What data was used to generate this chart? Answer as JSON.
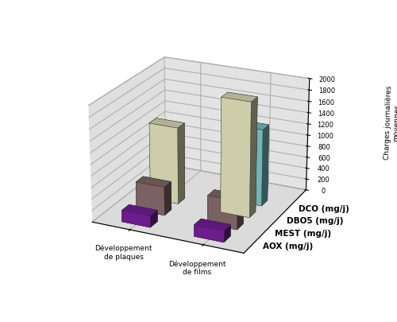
{
  "ylabel": "Charges journalières\nmoyennes\npar salarié (mg/j)",
  "categories": [
    "Développement\nde plaques",
    "Développement\nde films"
  ],
  "series": [
    "AOX (mg/j)",
    "MEST (mg/j)",
    "DBO5 (mg/j)",
    "DCO (mg/j)"
  ],
  "values": [
    [
      200,
      500,
      1350,
      0
    ],
    [
      200,
      500,
      2000,
      1350
    ]
  ],
  "bar_colors": [
    "#7b1fa2",
    "#8b6e6e",
    "#e8e8c0",
    "#7ecece"
  ],
  "bar_colors_dark": [
    "#4a0072",
    "#5a4040",
    "#c0c098",
    "#4a9898"
  ],
  "bar_colors_side": [
    "#6a1090",
    "#7a5c5c",
    "#d0d0a0",
    "#60b0b0"
  ],
  "ylim": [
    0,
    2000
  ],
  "yticks": [
    0,
    200,
    400,
    600,
    800,
    1000,
    1200,
    1400,
    1600,
    1800,
    2000
  ],
  "wall_back_color": "#c8c8c8",
  "wall_side_color": "#b8b8b8",
  "floor_color": "#909090",
  "figure_bg": "#ffffff",
  "elev": 22,
  "azim": -65
}
